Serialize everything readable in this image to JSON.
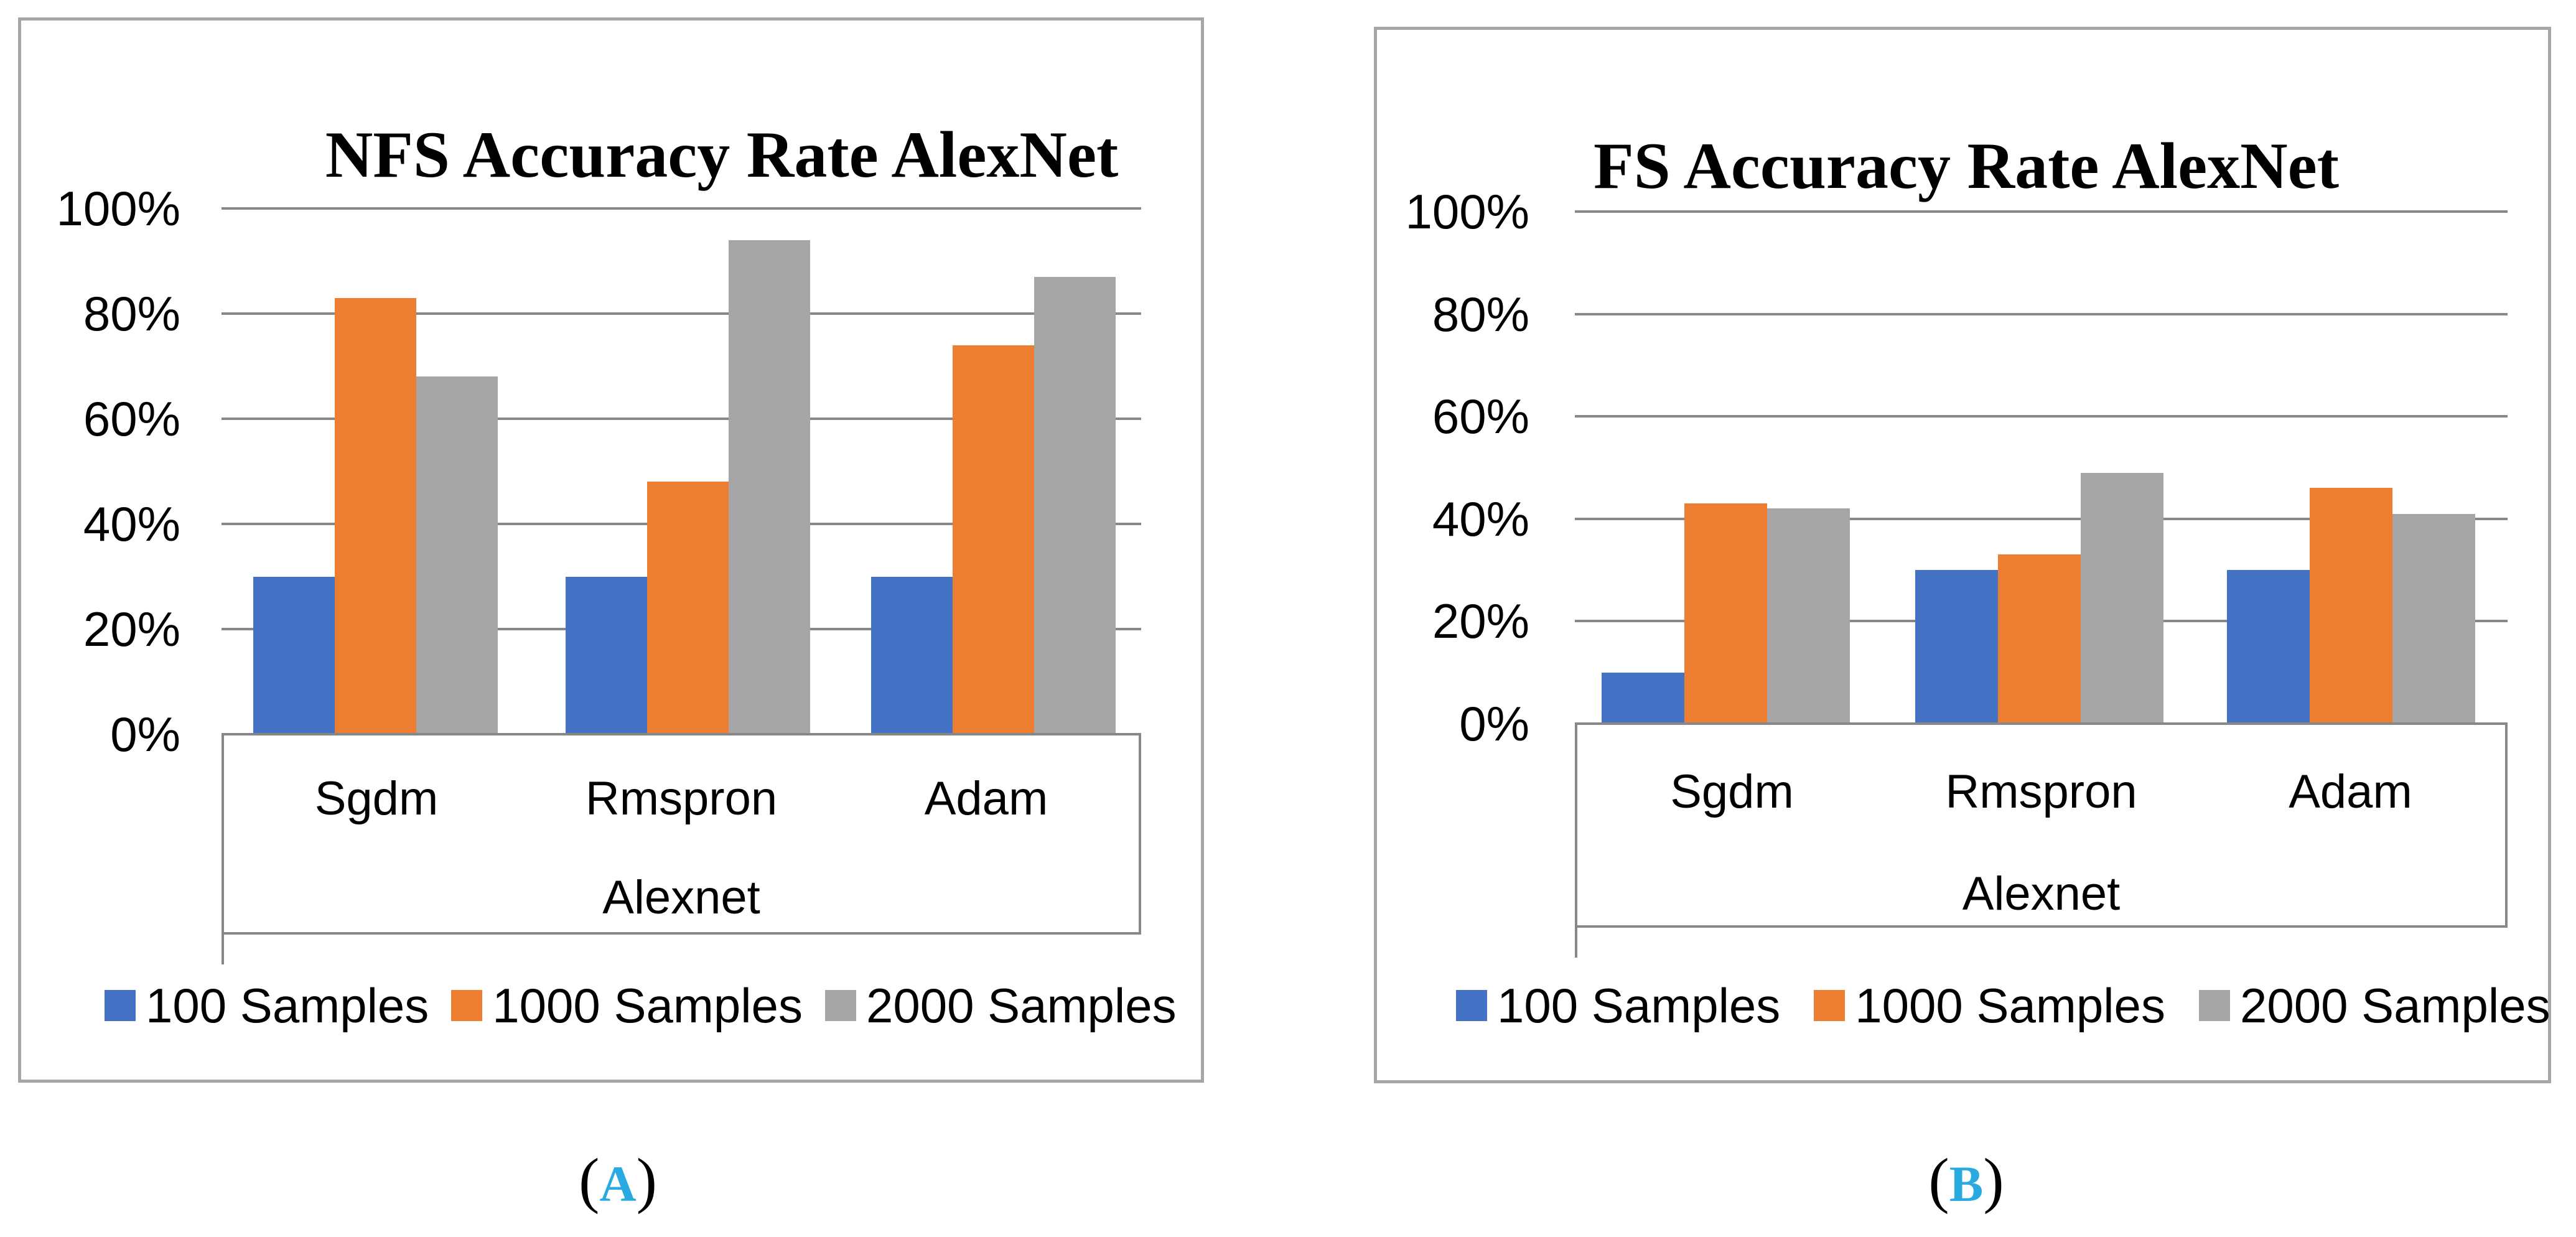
{
  "figure": {
    "background": "#ffffff",
    "panel_count": 2
  },
  "colors": {
    "series_blue": "#4472C4",
    "series_orange": "#ED7D31",
    "series_gray": "#A5A5A5",
    "gridline": "#878787",
    "panel_border": "#A6A6A6",
    "caption_letter": "#29ABE2",
    "text": "#000000"
  },
  "chart_data": [
    {
      "type": "bar",
      "title": "NFS Accuracy Rate AlexNet",
      "xlabel": "Alexnet",
      "ylabel": "",
      "categories": [
        "Sgdm",
        "Rmspron",
        "Adam"
      ],
      "series": [
        {
          "name": "100 Samples",
          "color": "#4472C4",
          "values": [
            30,
            30,
            30
          ]
        },
        {
          "name": "1000 Samples",
          "color": "#ED7D31",
          "values": [
            83,
            48,
            74
          ]
        },
        {
          "name": "2000 Samples",
          "color": "#A5A5A5",
          "values": [
            68,
            94,
            87
          ]
        }
      ],
      "ylim": [
        0,
        100
      ],
      "ytick_step": 20,
      "yticks": [
        "0%",
        "20%",
        "40%",
        "60%",
        "80%",
        "100%"
      ],
      "grid": true,
      "legend_position": "bottom",
      "caption": {
        "open": "(",
        "letter": "A",
        "close": ")"
      }
    },
    {
      "type": "bar",
      "title": "FS Accuracy Rate AlexNet",
      "xlabel": "Alexnet",
      "ylabel": "",
      "categories": [
        "Sgdm",
        "Rmspron",
        "Adam"
      ],
      "series": [
        {
          "name": "100 Samples",
          "color": "#4472C4",
          "values": [
            10,
            30,
            30
          ]
        },
        {
          "name": "1000 Samples",
          "color": "#ED7D31",
          "values": [
            43,
            33,
            46
          ]
        },
        {
          "name": "2000 Samples",
          "color": "#A5A5A5",
          "values": [
            42,
            49,
            41
          ]
        }
      ],
      "ylim": [
        0,
        100
      ],
      "ytick_step": 20,
      "yticks": [
        "0%",
        "20%",
        "40%",
        "60%",
        "80%",
        "100%"
      ],
      "grid": true,
      "legend_position": "bottom",
      "caption": {
        "open": "(",
        "letter": "B",
        "close": ")"
      }
    }
  ]
}
